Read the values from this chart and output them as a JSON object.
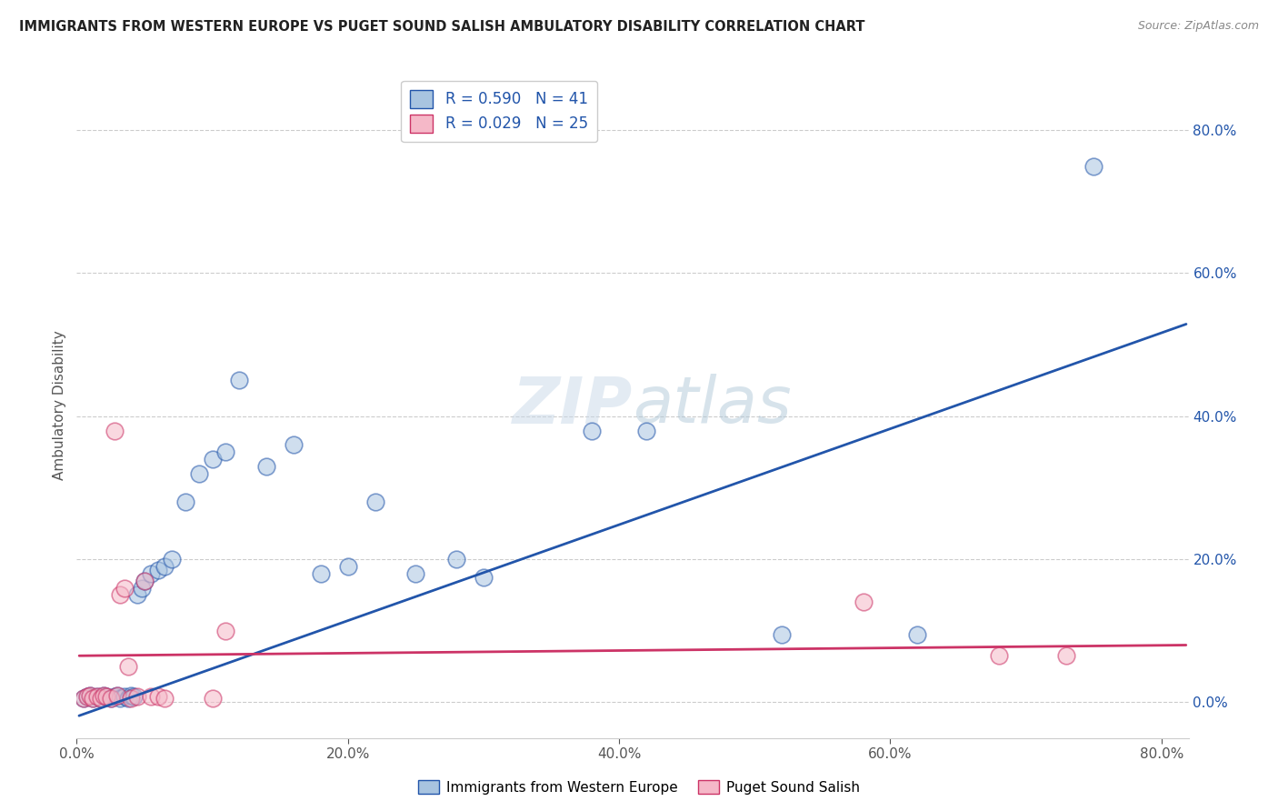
{
  "title": "IMMIGRANTS FROM WESTERN EUROPE VS PUGET SOUND SALISH AMBULATORY DISABILITY CORRELATION CHART",
  "source": "Source: ZipAtlas.com",
  "ylabel": "Ambulatory Disability",
  "xlim": [
    0.0,
    0.82
  ],
  "ylim": [
    -0.05,
    0.88
  ],
  "xticks": [
    0.0,
    0.2,
    0.4,
    0.6,
    0.8
  ],
  "yticks": [
    0.0,
    0.2,
    0.4,
    0.6,
    0.8
  ],
  "blue_R": 0.59,
  "blue_N": 41,
  "pink_R": 0.029,
  "pink_N": 25,
  "blue_scatter_color": "#A8C4E0",
  "pink_scatter_color": "#F5B8C8",
  "blue_line_color": "#2255AA",
  "pink_line_color": "#CC3366",
  "watermark_color": "#D8E8F0",
  "background_color": "#FFFFFF",
  "grid_color": "#CCCCCC",
  "blue_x": [
    0.005,
    0.008,
    0.01,
    0.012,
    0.015,
    0.018,
    0.02,
    0.022,
    0.025,
    0.028,
    0.03,
    0.032,
    0.035,
    0.038,
    0.04,
    0.042,
    0.045,
    0.048,
    0.05,
    0.055,
    0.06,
    0.065,
    0.07,
    0.08,
    0.09,
    0.1,
    0.11,
    0.12,
    0.14,
    0.16,
    0.18,
    0.2,
    0.22,
    0.25,
    0.28,
    0.3,
    0.38,
    0.42,
    0.52,
    0.62,
    0.75
  ],
  "blue_y": [
    0.005,
    0.008,
    0.01,
    0.005,
    0.008,
    0.005,
    0.01,
    0.008,
    0.005,
    0.008,
    0.01,
    0.005,
    0.008,
    0.005,
    0.01,
    0.008,
    0.15,
    0.16,
    0.17,
    0.18,
    0.185,
    0.19,
    0.2,
    0.28,
    0.32,
    0.34,
    0.35,
    0.45,
    0.33,
    0.36,
    0.18,
    0.19,
    0.28,
    0.18,
    0.2,
    0.175,
    0.38,
    0.38,
    0.095,
    0.095,
    0.75
  ],
  "pink_x": [
    0.005,
    0.008,
    0.01,
    0.012,
    0.015,
    0.018,
    0.02,
    0.022,
    0.025,
    0.028,
    0.03,
    0.032,
    0.035,
    0.038,
    0.04,
    0.045,
    0.05,
    0.055,
    0.06,
    0.065,
    0.1,
    0.11,
    0.58,
    0.68,
    0.73
  ],
  "pink_y": [
    0.005,
    0.008,
    0.01,
    0.005,
    0.008,
    0.005,
    0.01,
    0.008,
    0.005,
    0.38,
    0.01,
    0.15,
    0.16,
    0.05,
    0.005,
    0.008,
    0.17,
    0.008,
    0.008,
    0.005,
    0.005,
    0.1,
    0.14,
    0.065,
    0.065
  ],
  "blue_line_x0": 0.0,
  "blue_line_x1": 0.82,
  "blue_line_y0": -0.02,
  "blue_line_y1": 0.53,
  "pink_line_x0": 0.0,
  "pink_line_x1": 0.82,
  "pink_line_y0": 0.065,
  "pink_line_y1": 0.08
}
